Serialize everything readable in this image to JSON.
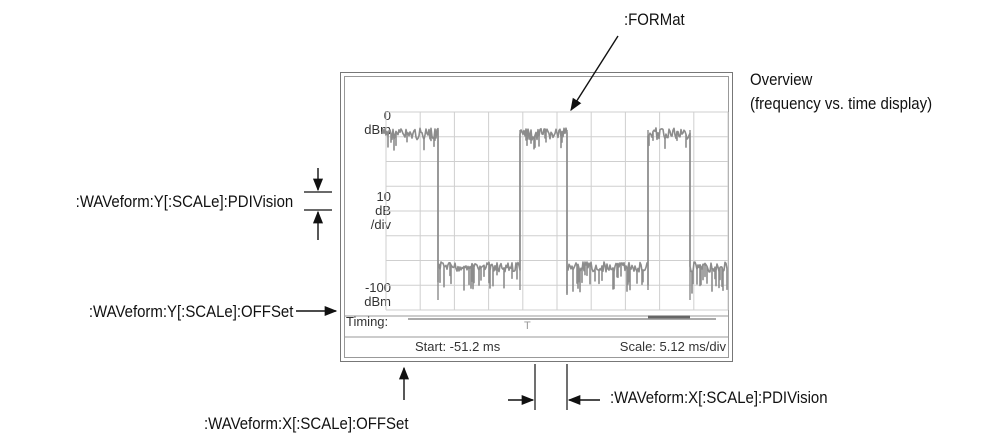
{
  "callouts": {
    "format": ":FORMat",
    "overview_title": "Overview",
    "overview_subtitle": "(frequency vs. time display)",
    "y_pdivision": ":WAVeform:Y[:SCALe]:PDIVision",
    "y_offset": ":WAVeform:Y[:SCALe]:OFFSet",
    "x_offset": ":WAVeform:X[:SCALe]:OFFSet",
    "x_pdivision": ":WAVeform:X[:SCALe]:PDIVision"
  },
  "screen": {
    "y_top_value": "0",
    "y_top_unit": "dBm",
    "y_scale_value": "10",
    "y_scale_unit": "dB",
    "y_scale_per": "/div",
    "y_bottom_value": "-100",
    "y_bottom_unit": "dBm",
    "timing_label": "Timing:",
    "timing_marker": "T",
    "start_text": "Start: -51.2 ms",
    "scale_text": "Scale: 5.12 ms/div"
  },
  "colors": {
    "trace": "#8c8c8c",
    "grid": "#cfcfcf",
    "frame": "#777777"
  },
  "icons": [
    "arrow-icon"
  ]
}
